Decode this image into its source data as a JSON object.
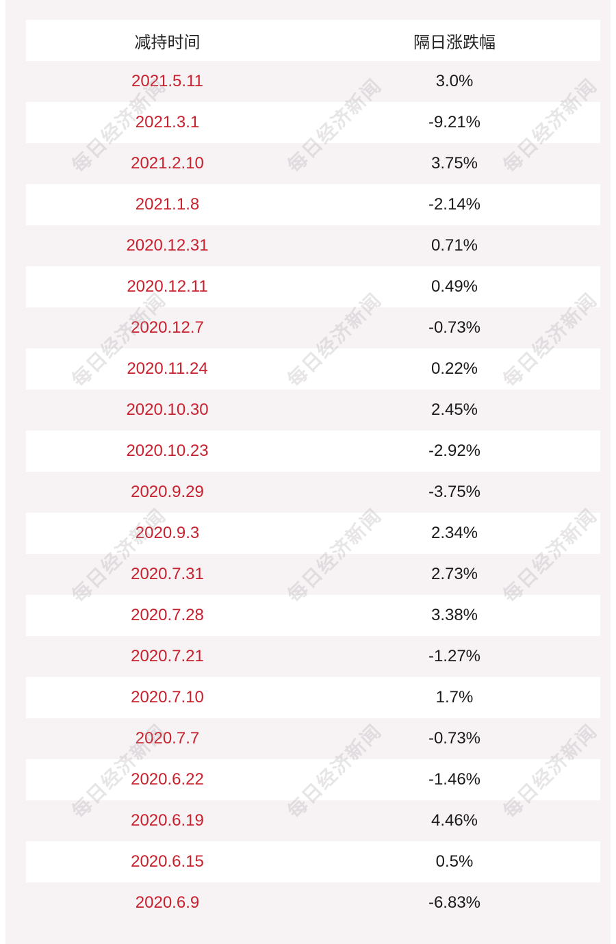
{
  "table": {
    "headers": [
      "减持时间",
      "隔日涨跌幅"
    ],
    "rows": [
      {
        "date": "2021.5.11",
        "change": "3.0%"
      },
      {
        "date": "2021.3.1",
        "change": "-9.21%"
      },
      {
        "date": "2021.2.10",
        "change": "3.75%"
      },
      {
        "date": "2021.1.8",
        "change": "-2.14%"
      },
      {
        "date": "2020.12.31",
        "change": "0.71%"
      },
      {
        "date": "2020.12.11",
        "change": "0.49%"
      },
      {
        "date": "2020.12.7",
        "change": "-0.73%"
      },
      {
        "date": "2020.11.24",
        "change": "0.22%"
      },
      {
        "date": "2020.10.30",
        "change": "2.45%"
      },
      {
        "date": "2020.10.23",
        "change": "-2.92%"
      },
      {
        "date": "2020.9.29",
        "change": "-3.75%"
      },
      {
        "date": "2020.9.3",
        "change": "2.34%"
      },
      {
        "date": "2020.7.31",
        "change": "2.73%"
      },
      {
        "date": "2020.7.28",
        "change": "3.38%"
      },
      {
        "date": "2020.7.21",
        "change": "-1.27%"
      },
      {
        "date": "2020.7.10",
        "change": "1.7%"
      },
      {
        "date": "2020.7.7",
        "change": "-0.73%"
      },
      {
        "date": "2020.6.22",
        "change": "-1.46%"
      },
      {
        "date": "2020.6.19",
        "change": "4.46%"
      },
      {
        "date": "2020.6.15",
        "change": "0.5%"
      },
      {
        "date": "2020.6.9",
        "change": "-6.83%"
      }
    ]
  },
  "watermark": {
    "text": "每日经济新闻"
  },
  "colors": {
    "date_text": "#c8212e",
    "value_text": "#1a1a1a",
    "panel_bg": "#f7f3f5",
    "row_white": "#ffffff"
  }
}
